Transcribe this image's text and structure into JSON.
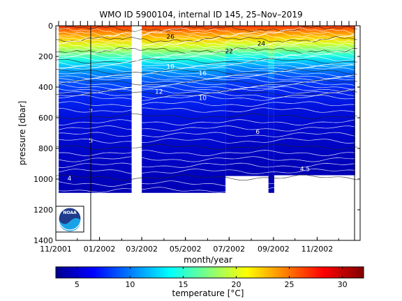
{
  "chart_data": {
    "type": "heatmap",
    "title": "WMO ID 5900104, internal ID 145, 25–Nov–2019",
    "xlabel": "month/year",
    "ylabel": "pressure [dbar]",
    "x_ticks": [
      "11/2001",
      "01/2002",
      "03/2002",
      "05/2002",
      "07/2002",
      "09/2002",
      "11/2002"
    ],
    "y_ticks": [
      0,
      200,
      400,
      600,
      800,
      1000,
      1200,
      1400
    ],
    "ylim": [
      0,
      1400
    ],
    "colorbar": {
      "label": "temperature [°C]",
      "ticks": [
        5,
        10,
        15,
        20,
        25,
        30
      ],
      "range": [
        3,
        32
      ]
    },
    "contour_labels": [
      {
        "text": "26",
        "date": "2002-04-10",
        "pressure": 70
      },
      {
        "text": "24",
        "date": "2002-08-15",
        "pressure": 115
      },
      {
        "text": "22",
        "date": "2002-07-01",
        "pressure": 165
      },
      {
        "text": "18",
        "date": "2002-04-10",
        "pressure": 265
      },
      {
        "text": "16",
        "date": "2002-05-25",
        "pressure": 310
      },
      {
        "text": "12",
        "date": "2002-03-25",
        "pressure": 430
      },
      {
        "text": "10",
        "date": "2002-05-25",
        "pressure": 470
      },
      {
        "text": "7",
        "date": "2001-12-20",
        "pressure": 560
      },
      {
        "text": "6",
        "date": "2002-08-10",
        "pressure": 690
      },
      {
        "text": "5",
        "date": "2001-12-20",
        "pressure": 750
      },
      {
        "text": "4.5",
        "date": "2002-10-15",
        "pressure": 935
      },
      {
        "text": "4",
        "date": "2001-11-20",
        "pressure": 995
      }
    ],
    "bottom_depth_segments": [
      {
        "start": "2001-11-05",
        "end": "2002-02-15",
        "max_pressure": 1090
      },
      {
        "start": "2002-03-01",
        "end": "2002-06-26",
        "max_pressure": 1090
      },
      {
        "start": "2002-06-26",
        "end": "2002-08-25",
        "max_pressure": 980
      },
      {
        "start": "2002-08-25",
        "end": "2002-09-02",
        "max_pressure": 1090
      },
      {
        "start": "2002-09-02",
        "end": "2002-12-24",
        "max_pressure": 975
      }
    ],
    "gap": {
      "start": "2002-02-15",
      "end": "2002-03-01",
      "top_pressure": 550
    },
    "colors": {
      "warm": "#ff2a00",
      "cold": "#0000c8"
    }
  },
  "logo": {
    "text": "NOAA"
  }
}
